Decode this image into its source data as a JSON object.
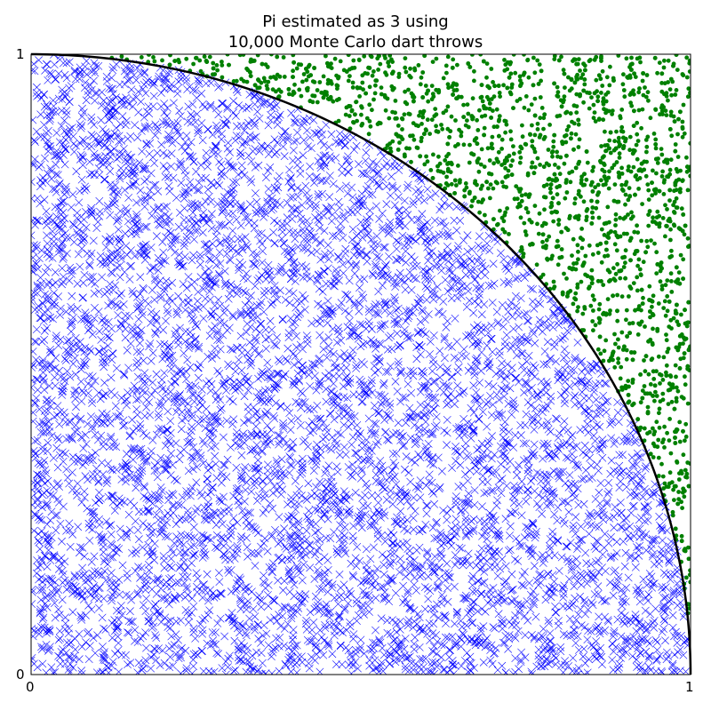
{
  "chart_data": {
    "type": "scatter",
    "title": [
      "Pi estimated as 3 using",
      "10,000 Monte Carlo dart throws"
    ],
    "xlabel": "",
    "ylabel": "",
    "xlim": [
      0,
      1
    ],
    "ylim": [
      0,
      1
    ],
    "xticks": [
      "0",
      "1"
    ],
    "yticks": [
      "0",
      "1"
    ],
    "grid": false,
    "legend": "none",
    "num_throws": 10000,
    "pi_estimate": 3,
    "boundary": {
      "shape": "quarter-circle",
      "radius": 1,
      "center": [
        0,
        0
      ],
      "color": "#000000"
    },
    "series": [
      {
        "marker": "x",
        "color": "#0000ff",
        "region": "inside quarter circle"
      },
      {
        "marker": "dot",
        "color": "#008000",
        "region": "outside quarter circle"
      }
    ]
  }
}
